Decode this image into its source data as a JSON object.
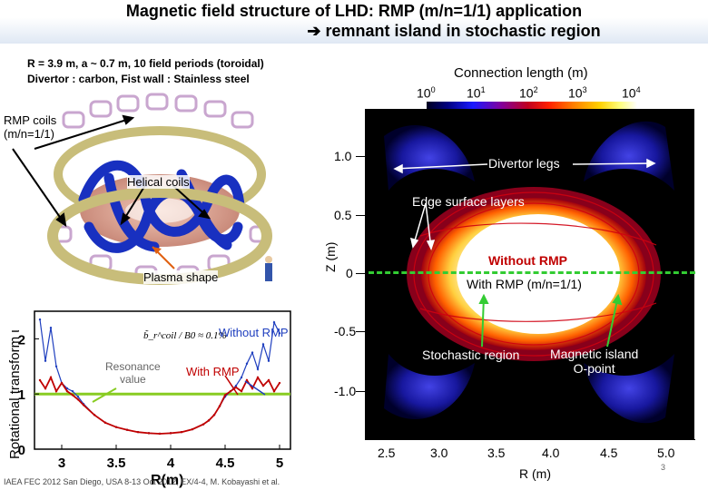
{
  "slide": {
    "title_line1": "Magnetic field structure of LHD: RMP (m/n=1/1) application",
    "title_line2": " remnant island in stochastic region",
    "arrow_glyph": "➔",
    "specs_line1": "R = 3.9 m, a ~ 0.7 m, 10 field periods (toroidal)",
    "specs_line2": "Divertor : carbon, Fist wall : Stainless steel",
    "footer": "IAEA FEC 2012 San Diego, USA 8-13 Oct 2012, EX/4-4, M. Kobayashi et al.",
    "page_number": "3"
  },
  "device_illustration": {
    "rmp_coils_label_1": "RMP coils",
    "rmp_coils_label_2": "(m/n=1/1)",
    "helical_coils_label": "Helical coils",
    "plasma_shape_label": "Plasma shape"
  },
  "colorbar": {
    "title": "Connection length (m)",
    "ticks": [
      "10",
      "10",
      "10",
      "10",
      "10"
    ],
    "exponents": [
      "0",
      "1",
      "2",
      "3",
      "4"
    ]
  },
  "poincare_plot": {
    "y_axis_label": "Z (m)",
    "x_axis_label": "R (m)",
    "y_ticks": [
      "1.0",
      "0.5",
      "0",
      "-0.5",
      "-1.0"
    ],
    "x_ticks": [
      "2.5",
      "3.0",
      "3.5",
      "4.0",
      "4.5",
      "5.0"
    ],
    "annotations": {
      "divertor_legs": "Divertor legs",
      "edge_surface_layers": "Edge surface layers",
      "without_rmp": "Without RMP",
      "with_rmp": "With RMP (m/n=1/1)",
      "stochastic_region": "Stochastic region",
      "magnetic_island_1": "Magnetic island",
      "magnetic_island_2": "O-point"
    }
  },
  "chart_data": {
    "type": "line",
    "title": "",
    "xlabel": "R(m)",
    "ylabel": "Rotational transform ι",
    "xlim": [
      2.75,
      5.1
    ],
    "ylim": [
      0,
      2.5
    ],
    "x_ticks": [
      "3",
      "3.5",
      "4",
      "4.5",
      "5"
    ],
    "y_ticks": [
      "0",
      "1",
      "2"
    ],
    "formula": "b̃_r^coil / B0 ≈ 0.1%",
    "resonance_label_1": "Resonance",
    "resonance_label_2": "value",
    "resonance_value": 1.0,
    "series": [
      {
        "name": "Without RMP",
        "color": "#1f3fbf",
        "x": [
          2.8,
          2.85,
          2.9,
          2.95,
          3.0,
          3.05,
          3.1,
          3.15,
          3.2,
          3.3,
          3.4,
          3.5,
          3.6,
          3.7,
          3.8,
          3.9,
          4.0,
          4.1,
          4.2,
          4.3,
          4.35,
          4.4,
          4.45,
          4.5,
          4.55,
          4.6,
          4.65,
          4.7,
          4.75,
          4.8,
          4.85,
          4.9,
          4.95,
          5.0
        ],
        "y": [
          2.35,
          1.6,
          2.2,
          1.5,
          1.2,
          1.1,
          1.05,
          0.95,
          0.82,
          0.62,
          0.48,
          0.4,
          0.35,
          0.31,
          0.29,
          0.28,
          0.29,
          0.31,
          0.36,
          0.45,
          0.52,
          0.62,
          0.78,
          0.95,
          1.05,
          1.15,
          1.3,
          1.55,
          1.75,
          1.45,
          1.9,
          1.6,
          2.3,
          2.1
        ]
      },
      {
        "name": "With RMP",
        "color": "#c00000",
        "x": [
          2.8,
          2.85,
          2.9,
          2.95,
          3.0,
          3.05,
          3.1,
          3.15,
          3.2,
          3.3,
          3.4,
          3.5,
          3.6,
          3.7,
          3.8,
          3.9,
          4.0,
          4.1,
          4.2,
          4.3,
          4.35,
          4.4,
          4.45,
          4.5,
          4.55,
          4.6,
          4.65,
          4.7,
          4.75,
          4.8,
          4.85,
          4.9,
          4.95,
          5.0
        ],
        "y": [
          1.25,
          1.1,
          1.3,
          1.05,
          1.2,
          1.05,
          0.98,
          0.9,
          0.8,
          0.62,
          0.48,
          0.4,
          0.35,
          0.31,
          0.29,
          0.28,
          0.29,
          0.31,
          0.36,
          0.45,
          0.52,
          0.62,
          0.78,
          0.98,
          1.05,
          1.12,
          1.05,
          1.25,
          1.1,
          1.3,
          1.15,
          1.25,
          1.05,
          1.2
        ]
      }
    ]
  }
}
